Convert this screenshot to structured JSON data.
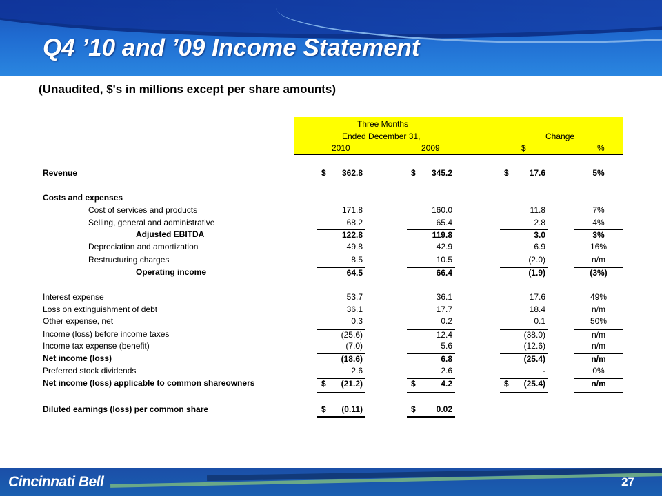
{
  "title": "Q4 ’10 and ’09 Income Statement",
  "subtitle": "(Unaudited, $'s in millions except per share amounts)",
  "table_header": {
    "period_line1": "Three Months",
    "period_line2": "Ended December 31,",
    "change": "Change",
    "col_2010": "2010",
    "col_2009": "2009",
    "col_dollar": "$",
    "col_pct": "%"
  },
  "rows": [
    {
      "label": "Revenue",
      "v2010": "362.8",
      "v2009": "345.2",
      "chg": "17.6",
      "pct": "5%"
    },
    {
      "label": "Costs and expenses"
    },
    {
      "label": "Cost of services and products",
      "v2010": "171.8",
      "v2009": "160.0",
      "chg": "11.8",
      "pct": "7%"
    },
    {
      "label": "Selling, general and administrative",
      "v2010": "68.2",
      "v2009": "65.4",
      "chg": "2.8",
      "pct": "4%"
    },
    {
      "label": "Adjusted EBITDA",
      "v2010": "122.8",
      "v2009": "119.8",
      "chg": "3.0",
      "pct": "3%"
    },
    {
      "label": "Depreciation and amortization",
      "v2010": "49.8",
      "v2009": "42.9",
      "chg": "6.9",
      "pct": "16%"
    },
    {
      "label": "Restructuring charges",
      "v2010": "8.5",
      "v2009": "10.5",
      "chg": "(2.0)",
      "pct": "n/m"
    },
    {
      "label": "Operating income",
      "v2010": "64.5",
      "v2009": "66.4",
      "chg": "(1.9)",
      "pct": "(3%)"
    },
    {
      "label": "Interest expense",
      "v2010": "53.7",
      "v2009": "36.1",
      "chg": "17.6",
      "pct": "49%"
    },
    {
      "label": "Loss on extinguishment of debt",
      "v2010": "36.1",
      "v2009": "17.7",
      "chg": "18.4",
      "pct": "n/m"
    },
    {
      "label": "Other expense, net",
      "v2010": "0.3",
      "v2009": "0.2",
      "chg": "0.1",
      "pct": "50%"
    },
    {
      "label": "Income (loss) before income taxes",
      "v2010": "(25.6)",
      "v2009": "12.4",
      "chg": "(38.0)",
      "pct": "n/m"
    },
    {
      "label": "Income tax expense (benefit)",
      "v2010": "(7.0)",
      "v2009": "5.6",
      "chg": "(12.6)",
      "pct": "n/m"
    },
    {
      "label": "Net income (loss)",
      "v2010": "(18.6)",
      "v2009": "6.8",
      "chg": "(25.4)",
      "pct": "n/m"
    },
    {
      "label": "Preferred stock dividends",
      "v2010": "2.6",
      "v2009": "2.6",
      "chg": "-",
      "pct": "0%"
    },
    {
      "label": "Net income (loss) applicable to common shareowners",
      "v2010": "(21.2)",
      "v2009": "4.2",
      "chg": "(25.4)",
      "pct": "n/m"
    },
    {
      "label": "Diluted earnings (loss) per common share",
      "v2010": "(0.11)",
      "v2009": "0.02"
    }
  ],
  "currency_symbol": "$",
  "footer": {
    "logo": "Cincinnati Bell",
    "page_number": "27"
  },
  "colors": {
    "header_blue": "#1f6ad0",
    "highlight_yellow": "#ffff00",
    "footer_blue": "#1a5fb0"
  }
}
